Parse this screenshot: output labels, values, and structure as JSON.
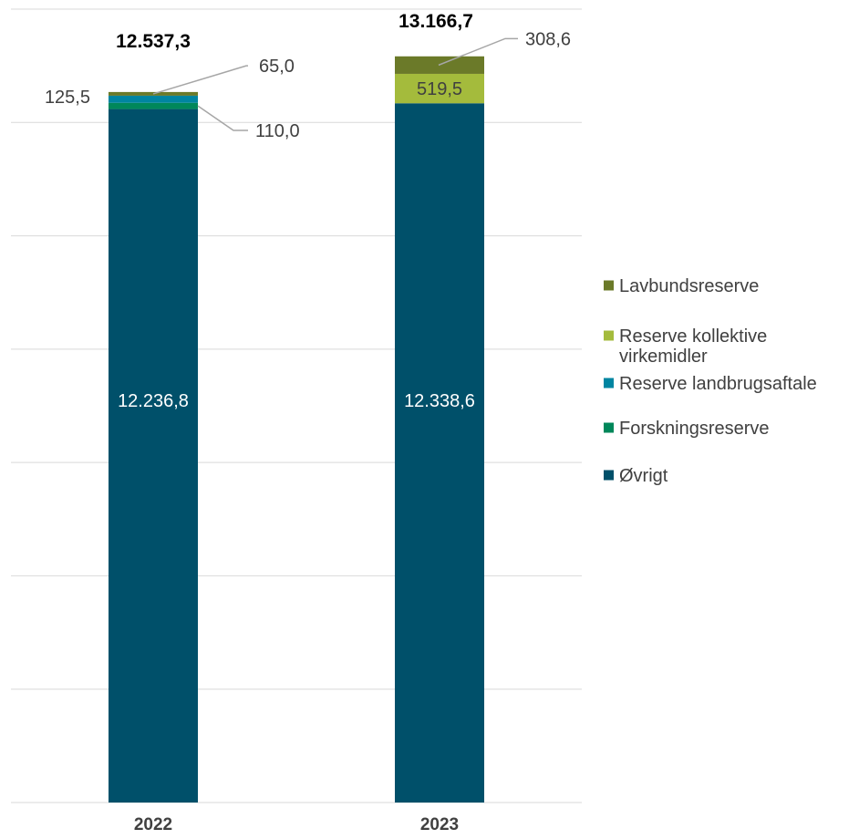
{
  "chart_data": {
    "type": "bar",
    "stacked": true,
    "categories": [
      "2022",
      "2023"
    ],
    "ylim": [
      0,
      14000
    ],
    "grid": true,
    "legend_position": "right",
    "totals": [
      "12.537,3",
      "13.166,7"
    ],
    "series": [
      {
        "name": "Øvrigt",
        "color": "#00506a",
        "values": [
          12236.8,
          12338.6
        ],
        "labels": [
          "12.236,8",
          "12.338,6"
        ]
      },
      {
        "name": "Forskningsreserve",
        "color": "#00875a",
        "values": [
          110.0,
          0
        ],
        "labels": [
          "110,0",
          ""
        ]
      },
      {
        "name": "Reserve landbrugsaftale",
        "color": "#0085a1",
        "values": [
          125.5,
          0
        ],
        "labels": [
          "125,5",
          ""
        ]
      },
      {
        "name": "Reserve kollektive virkemidler",
        "color": "#a4bb3c",
        "values": [
          0,
          519.5
        ],
        "labels": [
          "",
          "519,5"
        ]
      },
      {
        "name": "Lavbundsreserve",
        "color": "#6b7a29",
        "values": [
          65.0,
          308.6
        ],
        "labels": [
          "65,0",
          "308,6"
        ]
      }
    ],
    "legend": [
      {
        "color": "#6b7a29",
        "lines": [
          "Lavbundsreserve"
        ]
      },
      {
        "color": "#a4bb3c",
        "lines": [
          "Reserve kollektive",
          "virkemidler"
        ]
      },
      {
        "color": "#0085a1",
        "lines": [
          "Reserve landbrugsaftale"
        ]
      },
      {
        "color": "#00875a",
        "lines": [
          "Forskningsreserve"
        ]
      },
      {
        "color": "#00506a",
        "lines": [
          "Øvrigt"
        ]
      }
    ]
  }
}
